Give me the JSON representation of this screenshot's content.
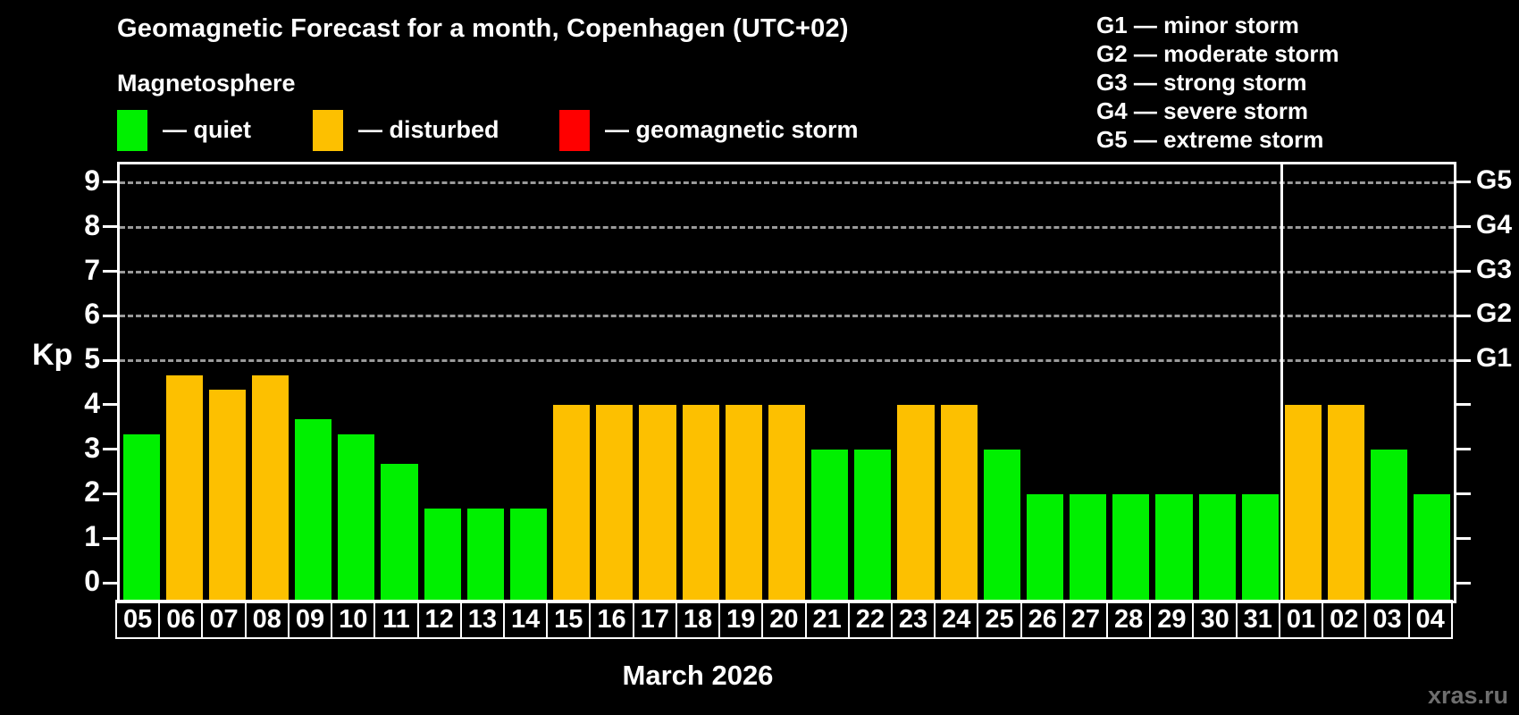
{
  "header": {
    "title": "Geomagnetic Forecast for a month, Copenhagen (UTC+02)",
    "subtitle": "Magnetosphere"
  },
  "legend": {
    "quiet": {
      "label": "— quiet",
      "color": "#00f000"
    },
    "disturbed": {
      "label": "— disturbed",
      "color": "#fdc000"
    },
    "storm": {
      "label": "— geomagnetic storm",
      "color": "#ff0000"
    }
  },
  "g_legend": {
    "lines": [
      "G1 — minor storm",
      "G2 — moderate storm",
      "G3 — strong storm",
      "G4 — severe storm",
      "G5 — extreme storm"
    ]
  },
  "footer": {
    "month_caption": "March 2026",
    "watermark": "xras.ru"
  },
  "chart_data": {
    "type": "bar",
    "title": "Geomagnetic Forecast for a month, Copenhagen (UTC+02)",
    "ylabel": "Kp",
    "ylim": [
      0,
      9
    ],
    "kp_ticks": [
      0,
      1,
      2,
      3,
      4,
      5,
      6,
      7,
      8,
      9
    ],
    "gridline_kp": [
      5,
      6,
      7,
      8,
      9
    ],
    "grid": "dashed-above-kp5",
    "right_axis_labels": [
      {
        "kp": 9,
        "label": "G5"
      },
      {
        "kp": 8,
        "label": "G4"
      },
      {
        "kp": 7,
        "label": "G3"
      },
      {
        "kp": 6,
        "label": "G2"
      },
      {
        "kp": 5,
        "label": "G1"
      }
    ],
    "categories": [
      "05",
      "06",
      "07",
      "08",
      "09",
      "10",
      "11",
      "12",
      "13",
      "14",
      "15",
      "16",
      "17",
      "18",
      "19",
      "20",
      "21",
      "22",
      "23",
      "24",
      "25",
      "26",
      "27",
      "28",
      "29",
      "30",
      "31",
      "01",
      "02",
      "03",
      "04"
    ],
    "values": [
      3.33,
      4.67,
      4.33,
      4.67,
      3.67,
      3.33,
      2.67,
      1.67,
      1.67,
      1.67,
      4,
      4,
      4,
      4,
      4,
      4,
      3,
      3,
      4,
      4,
      3,
      2,
      2,
      2,
      2,
      2,
      2,
      4,
      4,
      3,
      2
    ],
    "status": [
      "quiet",
      "disturbed",
      "disturbed",
      "disturbed",
      "quiet",
      "quiet",
      "quiet",
      "quiet",
      "quiet",
      "quiet",
      "disturbed",
      "disturbed",
      "disturbed",
      "disturbed",
      "disturbed",
      "disturbed",
      "quiet",
      "quiet",
      "disturbed",
      "disturbed",
      "quiet",
      "quiet",
      "quiet",
      "quiet",
      "quiet",
      "quiet",
      "quiet",
      "disturbed",
      "disturbed",
      "quiet",
      "quiet"
    ],
    "status_colors": {
      "quiet": "#00f000",
      "disturbed": "#fdc000",
      "storm": "#ff0000"
    },
    "month_separator_after_index": 26,
    "month_caption": "March 2026"
  }
}
